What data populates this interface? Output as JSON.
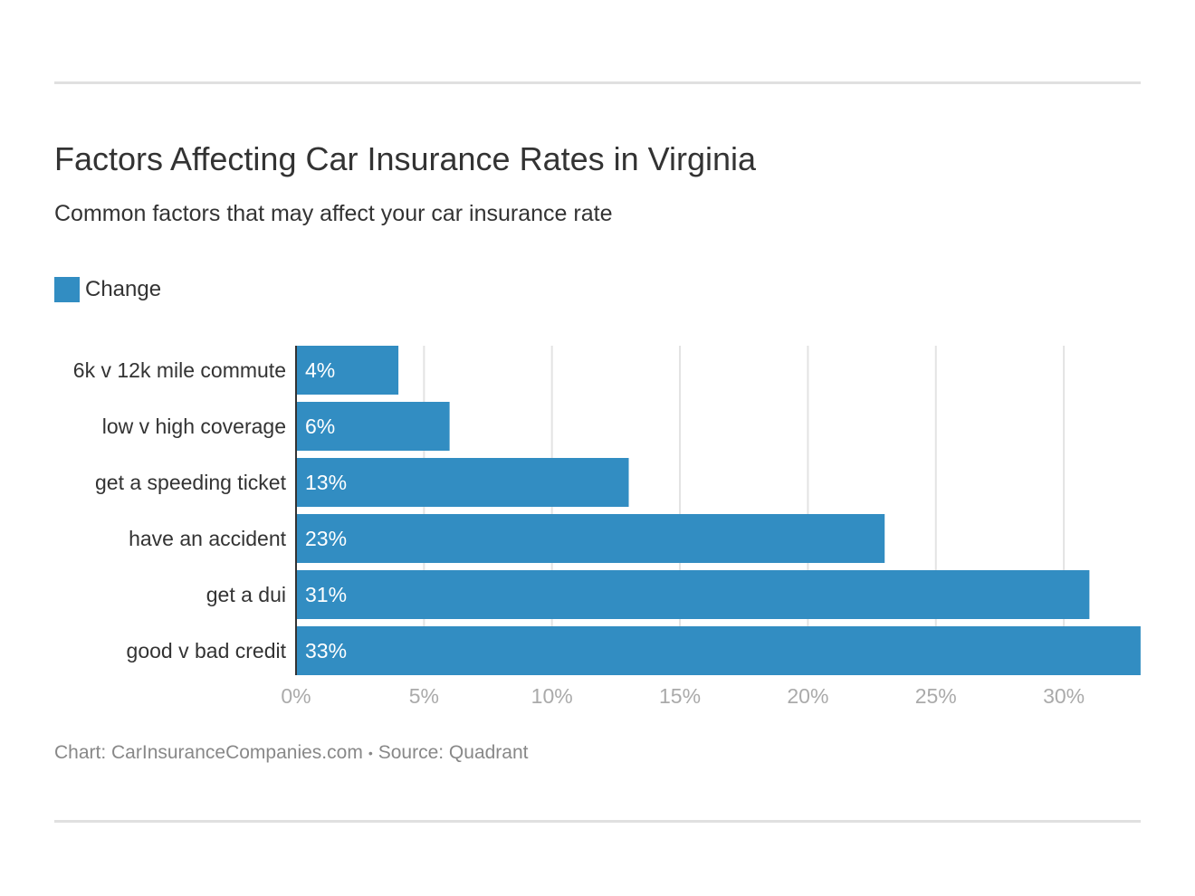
{
  "chart_data": {
    "type": "bar",
    "orientation": "horizontal",
    "title": "Factors Affecting Car Insurance Rates in Virginia",
    "subtitle": "Common factors that may affect your car insurance rate",
    "categories": [
      "6k v 12k mile commute",
      "low v high coverage",
      "get a speeding ticket",
      "have an accident",
      "get a dui",
      "good v bad credit"
    ],
    "series": [
      {
        "name": "Change",
        "values": [
          4,
          6,
          13,
          23,
          31,
          33
        ],
        "color": "#328dc2"
      }
    ],
    "data_labels": [
      "4%",
      "6%",
      "13%",
      "23%",
      "31%",
      "33%"
    ],
    "xlim": [
      0,
      33
    ],
    "xticks": [
      0,
      5,
      10,
      15,
      20,
      25,
      30
    ],
    "xtick_labels": [
      "0%",
      "5%",
      "10%",
      "15%",
      "20%",
      "25%",
      "30%"
    ],
    "grid": true,
    "legend": "top-left",
    "xlabel": "",
    "ylabel": ""
  },
  "footer": {
    "chart_credit": "Chart: CarInsuranceCompanies.com",
    "separator": "•",
    "source": "Source: Quadrant"
  }
}
